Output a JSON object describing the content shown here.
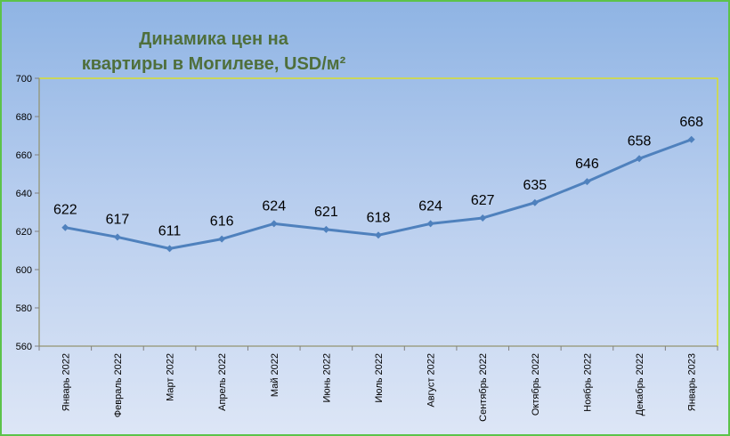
{
  "chart_data": {
    "type": "line",
    "title_lines": [
      "Динамика цен на",
      "квартиры в Могилеве, USD/м²"
    ],
    "categories": [
      "Январь 2022",
      "Февраль 2022",
      "Март 2022",
      "Апрель 2022",
      "Май 2022",
      "Июнь 2022",
      "Июль 2022",
      "Август 2022",
      "Сентябрь 2022",
      "Октябрь 2022",
      "Ноябрь 2022",
      "Декабрь 2022",
      "Январь 2023"
    ],
    "series": [
      {
        "values": [
          622,
          617,
          611,
          616,
          624,
          621,
          618,
          624,
          627,
          635,
          646,
          658,
          668
        ]
      }
    ],
    "ylim": [
      560,
      700
    ],
    "yticks": [
      560,
      580,
      600,
      620,
      640,
      660,
      680,
      700
    ],
    "line_color": "#4f81bd",
    "plot_border_color": "#e6e600",
    "title_color": "#4f6f3c",
    "grid": false,
    "legend": "none"
  }
}
